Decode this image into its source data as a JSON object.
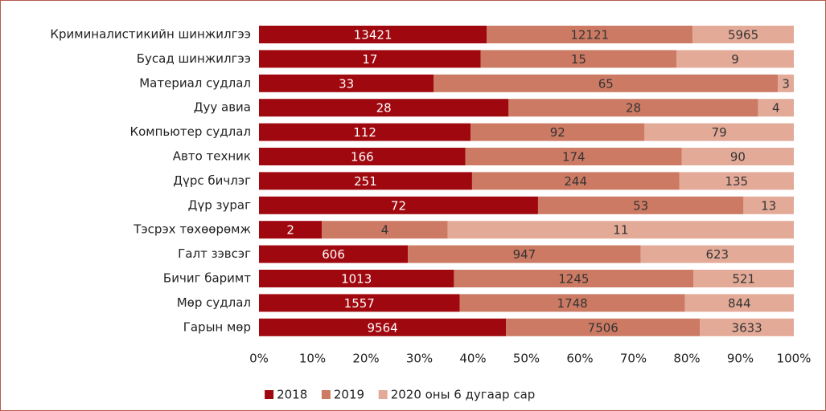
{
  "chart_data": {
    "type": "bar",
    "orientation": "horizontal",
    "stacking": "percent",
    "categories": [
      "Криминалистикийн шинжилгээ",
      "Бусад шинжилгээ",
      "Материал судлал",
      "Дуу авиа",
      "Компьютер судлал ",
      "Авто техник",
      "Дүрс бичлэг",
      "Дүр зураг",
      "Тэсрэх төхөөрөмж",
      "Галт зэвсэг",
      "Бичиг баримт",
      "Мөр судлал",
      "Гарын мөр"
    ],
    "series": [
      {
        "name": "2018",
        "color": "#a0080f",
        "values": [
          13421,
          17,
          33,
          28,
          112,
          166,
          251,
          72,
          2,
          606,
          1013,
          1557,
          9564
        ]
      },
      {
        "name": "2019",
        "color": "#cc7a63",
        "values": [
          12121,
          15,
          65,
          28,
          92,
          174,
          244,
          53,
          4,
          947,
          1245,
          1748,
          7506
        ]
      },
      {
        "name": "2020 оны 6 дугаар сар",
        "color": "#e4aa98",
        "values": [
          5965,
          9,
          3,
          4,
          79,
          90,
          135,
          13,
          11,
          623,
          521,
          844,
          3633
        ]
      }
    ],
    "xlim": [
      0,
      100
    ],
    "xticks": [
      {
        "value": 0,
        "label": "0%"
      },
      {
        "value": 10,
        "label": "10%"
      },
      {
        "value": 20,
        "label": "20%"
      },
      {
        "value": 30,
        "label": "30%"
      },
      {
        "value": 40,
        "label": "40%"
      },
      {
        "value": 50,
        "label": "50%"
      },
      {
        "value": 60,
        "label": "60%"
      },
      {
        "value": 70,
        "label": "70%"
      },
      {
        "value": 80,
        "label": "80%"
      },
      {
        "value": 90,
        "label": "90%"
      },
      {
        "value": 100,
        "label": "100%"
      }
    ],
    "legend": "bottom"
  }
}
